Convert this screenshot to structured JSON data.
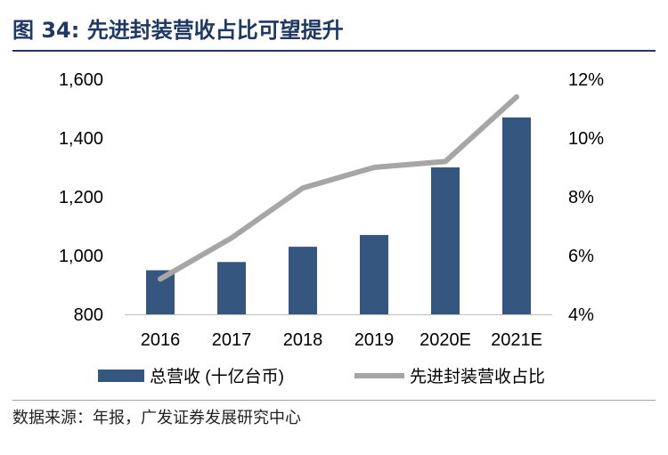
{
  "figure": {
    "title": "图 34: 先进封装营收占比可望提升",
    "source": "数据来源：年报，广发证券发展研究中心"
  },
  "chart_data": {
    "type": "bar",
    "categories": [
      "2016",
      "2017",
      "2018",
      "2019",
      "2020E",
      "2021E"
    ],
    "series": [
      {
        "name": "总营收 (十亿台币)",
        "type": "bar",
        "axis": "left",
        "color": "#35577f",
        "values": [
          950,
          978,
          1030,
          1070,
          1300,
          1470
        ]
      },
      {
        "name": "先进封装营收占比",
        "type": "line",
        "axis": "right",
        "color": "#a6a6a6",
        "values": [
          5.2,
          6.6,
          8.3,
          9.0,
          9.2,
          11.4
        ]
      }
    ],
    "y_left": {
      "range": [
        800,
        1600
      ],
      "ticks": [
        "800",
        "1,000",
        "1,200",
        "1,400",
        "1,600"
      ]
    },
    "y_right": {
      "range": [
        4,
        12
      ],
      "ticks": [
        "4%",
        "6%",
        "8%",
        "10%",
        "12%"
      ]
    },
    "grid": false,
    "legend": "bottom"
  }
}
